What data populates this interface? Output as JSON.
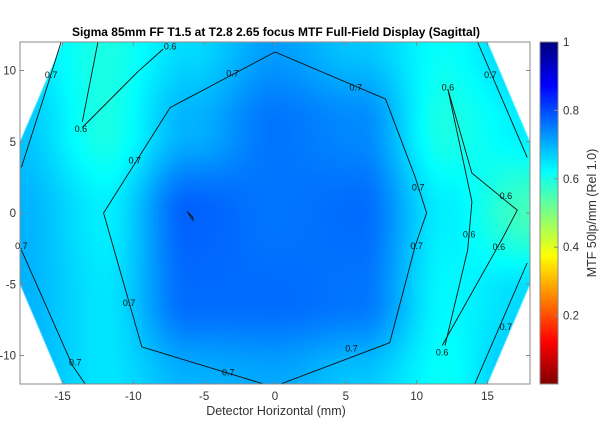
{
  "chart_data": {
    "type": "heatmap",
    "title": "Sigma 85mm FF T1.5 at T2.8 2.65 focus MTF Full-Field Display (Sagittal)",
    "xlabel": "Detector Horizontal (mm)",
    "ylabel": "",
    "colorbar_label": "MTF 50lp/mm (Rel 1.0)",
    "colormap": "jet-reversed",
    "xlim": [
      -18,
      18
    ],
    "ylim": [
      -12,
      12
    ],
    "clim": [
      0,
      1
    ],
    "xticks": [
      -15,
      -10,
      -5,
      0,
      5,
      10,
      15
    ],
    "xtick_labels": [
      "-15",
      "-10",
      "-5",
      "0",
      "5",
      "10",
      "15"
    ],
    "yticks": [
      -10,
      -5,
      0,
      5,
      10
    ],
    "ytick_labels": [
      "-10",
      "-5",
      "0",
      "5",
      "10"
    ],
    "cticks": [
      0.2,
      0.4,
      0.6,
      0.8,
      1
    ],
    "ctick_labels": [
      "0.2",
      "0.4",
      "0.6",
      "0.8",
      "1"
    ],
    "image_circle": [
      [
        -18,
        5
      ],
      [
        -15,
        12
      ],
      [
        15,
        12
      ],
      [
        18,
        5
      ],
      [
        18,
        -5
      ],
      [
        15,
        -12
      ],
      [
        -15,
        -12
      ],
      [
        -18,
        -5
      ]
    ],
    "grid": {
      "x": [
        -18,
        -12,
        -6,
        0,
        6,
        12,
        18
      ],
      "y": [
        12,
        6,
        0,
        -6,
        -12
      ],
      "values": [
        [
          0.65,
          0.6,
          0.66,
          0.72,
          0.68,
          0.62,
          0.68
        ],
        [
          0.68,
          0.6,
          0.7,
          0.76,
          0.74,
          0.6,
          0.64
        ],
        [
          0.7,
          0.64,
          0.78,
          0.76,
          0.77,
          0.64,
          0.56
        ],
        [
          0.7,
          0.65,
          0.77,
          0.77,
          0.76,
          0.63,
          0.66
        ],
        [
          0.7,
          0.65,
          0.7,
          0.71,
          0.68,
          0.62,
          0.7
        ]
      ]
    },
    "contours": [
      {
        "level": 0.7,
        "points": [
          [
            0.4,
            -12
          ],
          [
            8.1,
            -9.1
          ],
          [
            9.9,
            -2.3
          ],
          [
            10.7,
            0
          ],
          [
            9.9,
            2.5
          ],
          [
            7.8,
            8.0
          ],
          [
            0,
            11.3
          ],
          [
            -7.4,
            7.4
          ],
          [
            -12.1,
            0
          ],
          [
            -9.4,
            -9.4
          ],
          [
            -0.8,
            -12
          ]
        ]
      },
      {
        "level": 0.7,
        "points": [
          [
            -17.9,
            3.2
          ],
          [
            -16.2,
            8.5
          ],
          [
            -15.1,
            12
          ]
        ]
      },
      {
        "level": 0.7,
        "points": [
          [
            -17.9,
            -2.6
          ],
          [
            -14.3,
            -10.7
          ],
          [
            -13.4,
            -12
          ]
        ]
      },
      {
        "level": 0.7,
        "points": [
          [
            14.3,
            12
          ],
          [
            17.8,
            3.9
          ]
        ]
      },
      {
        "level": 0.7,
        "points": [
          [
            17.8,
            -3.5
          ],
          [
            14.1,
            -12
          ]
        ]
      },
      {
        "level": 0.7,
        "points": [
          [
            -6.2,
            0.1
          ],
          [
            -5.8,
            -0.3
          ],
          [
            -5.8,
            -0.5
          ],
          [
            -6.2,
            0.1
          ]
        ]
      },
      {
        "level": 0.6,
        "points": [
          [
            -12.5,
            12
          ],
          [
            -13.6,
            6.4
          ]
        ]
      },
      {
        "level": 0.6,
        "points": [
          [
            -13.6,
            6
          ],
          [
            -9.7,
            9.9
          ],
          [
            -7.9,
            11.5
          ]
        ]
      },
      {
        "level": 0.6,
        "points": [
          [
            12.2,
            8.7
          ],
          [
            13.9,
            2.8
          ],
          [
            17.1,
            0.2
          ],
          [
            16.1,
            -1.7
          ],
          [
            11.8,
            -9.3
          ]
        ]
      },
      {
        "level": 0.6,
        "points": [
          [
            12.2,
            8.7
          ],
          [
            13.9,
            0.8
          ],
          [
            13.6,
            -2.6
          ],
          [
            12.0,
            -9.3
          ]
        ]
      }
    ],
    "contour_labels": [
      {
        "text": "0.7",
        "at": [
          5.7,
          8.8
        ]
      },
      {
        "text": "0.7",
        "at": [
          10.1,
          1.8
        ]
      },
      {
        "text": "0.7",
        "at": [
          10.0,
          -2.3
        ]
      },
      {
        "text": "0.7",
        "at": [
          5.4,
          -9.5
        ]
      },
      {
        "text": "0.7",
        "at": [
          -3.3,
          -11.2
        ]
      },
      {
        "text": "0.7",
        "at": [
          -10.3,
          -6.3
        ]
      },
      {
        "text": "0.7",
        "at": [
          -9.9,
          3.7
        ]
      },
      {
        "text": "0.7",
        "at": [
          -3.0,
          9.8
        ]
      },
      {
        "text": "0.7",
        "at": [
          -15.8,
          9.7
        ]
      },
      {
        "text": "0.7",
        "at": [
          -17.9,
          -2.3
        ]
      },
      {
        "text": "0.7",
        "at": [
          -14.1,
          -10.5
        ]
      },
      {
        "text": "0.7",
        "at": [
          15.2,
          9.7
        ]
      },
      {
        "text": "0.7",
        "at": [
          16.3,
          -8.0
        ]
      },
      {
        "text": "0.6",
        "at": [
          -13.7,
          5.9
        ]
      },
      {
        "text": "0.6",
        "at": [
          -7.4,
          11.7
        ]
      },
      {
        "text": "0.6",
        "at": [
          12.2,
          8.8
        ]
      },
      {
        "text": "0.6",
        "at": [
          16.3,
          1.2
        ]
      },
      {
        "text": "0.6",
        "at": [
          13.7,
          -1.5
        ]
      },
      {
        "text": "0.6",
        "at": [
          15.8,
          -2.4
        ]
      },
      {
        "text": "0.6",
        "at": [
          11.8,
          -9.8
        ]
      }
    ]
  }
}
